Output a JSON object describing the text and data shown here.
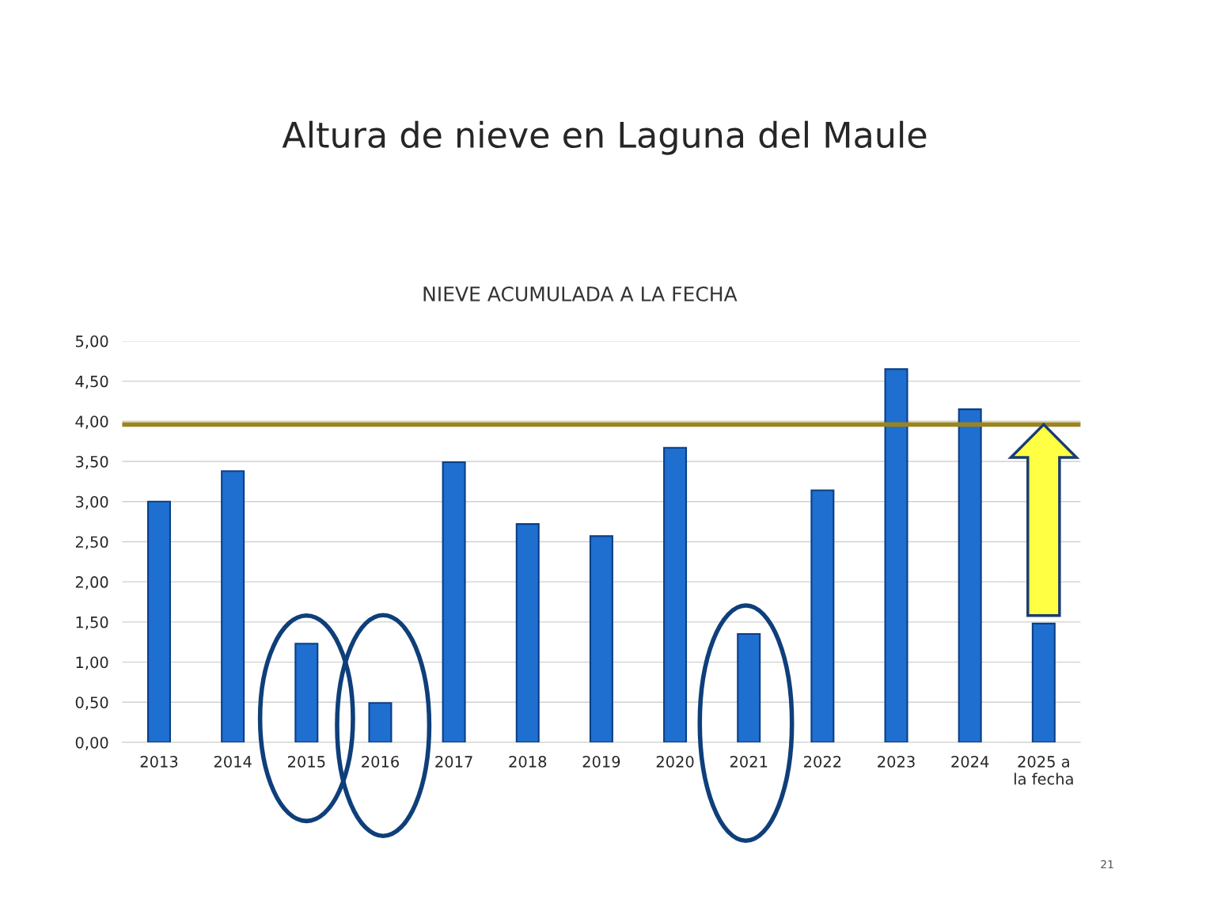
{
  "chart_data": {
    "type": "bar",
    "title": "Altura de nieve en Laguna del Maule",
    "subtitle": "NIEVE ACUMULADA A LA FECHA",
    "categories": [
      "2013",
      "2014",
      "2015",
      "2016",
      "2017",
      "2018",
      "2019",
      "2020",
      "2021",
      "2022",
      "2023",
      "2024",
      "2025 a\nla fecha"
    ],
    "values": [
      3.0,
      3.38,
      1.23,
      0.49,
      3.49,
      2.72,
      2.57,
      3.67,
      1.35,
      3.14,
      4.65,
      4.15,
      1.48
    ],
    "color": "#1f6fd0",
    "ylim": [
      0,
      5
    ],
    "yticks": [
      {
        "value": 0,
        "label": "0,00"
      },
      {
        "value": 0.5,
        "label": "0,50"
      },
      {
        "value": 1,
        "label": "1,00"
      },
      {
        "value": 1.5,
        "label": "1,50"
      },
      {
        "value": 2,
        "label": "2,00"
      },
      {
        "value": 2.5,
        "label": "2,50"
      },
      {
        "value": 3,
        "label": "3,00"
      },
      {
        "value": 3.5,
        "label": "3,50"
      },
      {
        "value": 4,
        "label": "4,00"
      },
      {
        "value": 4.5,
        "label": "4,50"
      },
      {
        "value": 5,
        "label": "5,00"
      }
    ],
    "grid": "y",
    "ref_lines": [
      {
        "axis": "y",
        "value": 3.96,
        "color": "#9a8420"
      }
    ],
    "annotations": [
      "21"
    ]
  }
}
